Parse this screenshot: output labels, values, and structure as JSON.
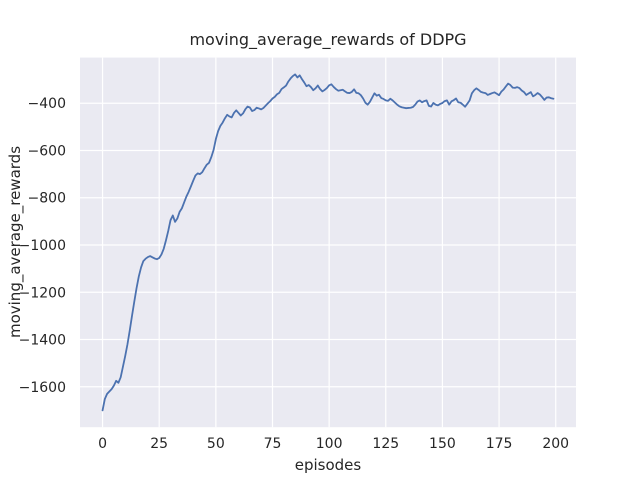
{
  "chart_data": {
    "type": "line",
    "title": "moving_average_rewards of DDPG",
    "xlabel": "episodes",
    "ylabel": "moving_average_rewards",
    "x_start": 0,
    "x_step": 1,
    "values": [
      -1700,
      -1652,
      -1630,
      -1620,
      -1610,
      -1595,
      -1575,
      -1583,
      -1560,
      -1515,
      -1470,
      -1420,
      -1362,
      -1300,
      -1240,
      -1183,
      -1133,
      -1095,
      -1068,
      -1058,
      -1051,
      -1047,
      -1052,
      -1057,
      -1060,
      -1055,
      -1040,
      -1016,
      -980,
      -940,
      -895,
      -875,
      -902,
      -888,
      -860,
      -845,
      -820,
      -795,
      -775,
      -752,
      -728,
      -706,
      -697,
      -700,
      -692,
      -675,
      -660,
      -652,
      -628,
      -598,
      -552,
      -518,
      -496,
      -482,
      -464,
      -449,
      -456,
      -460,
      -441,
      -430,
      -441,
      -452,
      -443,
      -426,
      -414,
      -418,
      -433,
      -429,
      -419,
      -422,
      -426,
      -420,
      -410,
      -400,
      -391,
      -380,
      -373,
      -362,
      -356,
      -340,
      -333,
      -325,
      -308,
      -295,
      -285,
      -278,
      -291,
      -282,
      -298,
      -312,
      -328,
      -323,
      -332,
      -345,
      -337,
      -325,
      -340,
      -350,
      -344,
      -336,
      -324,
      -320,
      -331,
      -340,
      -347,
      -345,
      -343,
      -350,
      -356,
      -357,
      -352,
      -341,
      -356,
      -358,
      -366,
      -380,
      -398,
      -406,
      -394,
      -376,
      -358,
      -368,
      -364,
      -378,
      -382,
      -388,
      -390,
      -381,
      -388,
      -397,
      -406,
      -413,
      -417,
      -419,
      -421,
      -420,
      -419,
      -416,
      -406,
      -393,
      -388,
      -396,
      -391,
      -388,
      -411,
      -414,
      -399,
      -406,
      -409,
      -403,
      -399,
      -391,
      -388,
      -406,
      -392,
      -387,
      -380,
      -396,
      -398,
      -406,
      -415,
      -402,
      -388,
      -358,
      -345,
      -337,
      -344,
      -352,
      -355,
      -357,
      -365,
      -361,
      -357,
      -354,
      -360,
      -366,
      -351,
      -342,
      -329,
      -317,
      -323,
      -334,
      -335,
      -332,
      -336,
      -346,
      -353,
      -365,
      -359,
      -353,
      -371,
      -365,
      -357,
      -363,
      -374,
      -386,
      -376,
      -375,
      -379,
      -381
    ],
    "xticks": [
      0,
      25,
      50,
      75,
      100,
      125,
      150,
      175,
      200
    ],
    "yticks": [
      -400,
      -600,
      -800,
      -1000,
      -1200,
      -1400,
      -1600
    ],
    "xlim": [
      -9.95,
      208.95
    ],
    "ylim": [
      -1771.1,
      -206.9
    ],
    "grid": true,
    "legend": null,
    "line_color": "#4c72b0",
    "plot_bg": "#eaeaf2",
    "grid_color": "#ffffff",
    "text_color": "#262626",
    "figure_bg": "#ffffff"
  }
}
